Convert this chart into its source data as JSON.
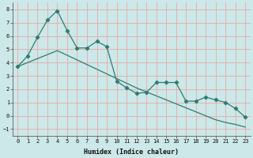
{
  "xlabel": "Humidex (Indice chaleur)",
  "xlim": [
    -0.5,
    23.5
  ],
  "ylim": [
    -1.5,
    8.5
  ],
  "yticks": [
    -1,
    0,
    1,
    2,
    3,
    4,
    5,
    6,
    7,
    8
  ],
  "xticks": [
    0,
    1,
    2,
    3,
    4,
    5,
    6,
    7,
    8,
    9,
    10,
    11,
    12,
    13,
    14,
    15,
    16,
    17,
    18,
    19,
    20,
    21,
    22,
    23
  ],
  "color": "#2d7d72",
  "bg_color": "#cce8e8",
  "grid_color": "#e8a8a8",
  "jagged_x": [
    0,
    1,
    2,
    3,
    4,
    5,
    6,
    7,
    8,
    9,
    10,
    11,
    12,
    13,
    14,
    15,
    16,
    17,
    18,
    19,
    20,
    21,
    22,
    23
  ],
  "jagged_y": [
    3.7,
    4.5,
    5.9,
    7.2,
    7.9,
    6.4,
    5.1,
    5.1,
    5.6,
    5.2,
    2.6,
    2.1,
    1.7,
    1.75,
    2.5,
    2.5,
    2.5,
    1.1,
    1.1,
    1.4,
    1.2,
    1.0,
    0.55,
    -0.1
  ],
  "trend_x": [
    0,
    1,
    2,
    3,
    4,
    5,
    6,
    7,
    8,
    9,
    10,
    11,
    12,
    13,
    14,
    15,
    16,
    17,
    18,
    19,
    20,
    21,
    22,
    23
  ],
  "trend_y": [
    3.7,
    4.0,
    4.3,
    4.6,
    4.9,
    4.55,
    4.2,
    3.85,
    3.5,
    3.15,
    2.8,
    2.45,
    2.1,
    1.8,
    1.5,
    1.2,
    0.9,
    0.6,
    0.3,
    0.0,
    -0.3,
    -0.5,
    -0.65,
    -0.85
  ]
}
